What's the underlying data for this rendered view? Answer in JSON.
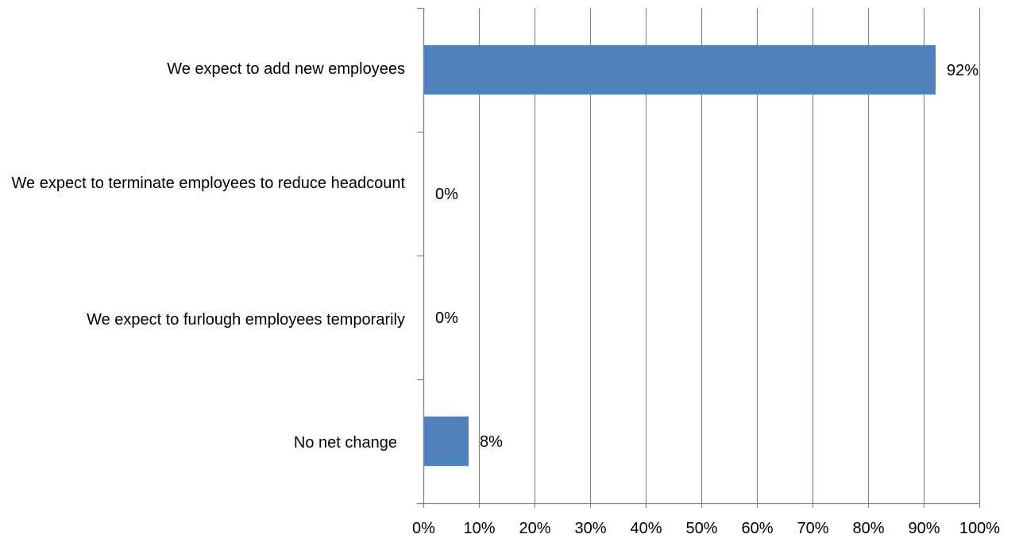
{
  "chart_data": {
    "type": "bar",
    "orientation": "horizontal",
    "categories": [
      "We expect to add new employees",
      "We expect to terminate employees to reduce headcount",
      "We expect to furlough employees temporarily",
      "No net change"
    ],
    "values": [
      92,
      0,
      0,
      8
    ],
    "data_labels": [
      "92%",
      "0%",
      "0%",
      "8%"
    ],
    "xlim": [
      0,
      100
    ],
    "x_ticks": [
      "0%",
      "10%",
      "20%",
      "30%",
      "40%",
      "50%",
      "60%",
      "70%",
      "80%",
      "90%",
      "100%"
    ],
    "grid": true,
    "legend": "none",
    "colors": {
      "bar": "#4f81bd",
      "grid": "#868686",
      "axis": "#868686"
    }
  }
}
